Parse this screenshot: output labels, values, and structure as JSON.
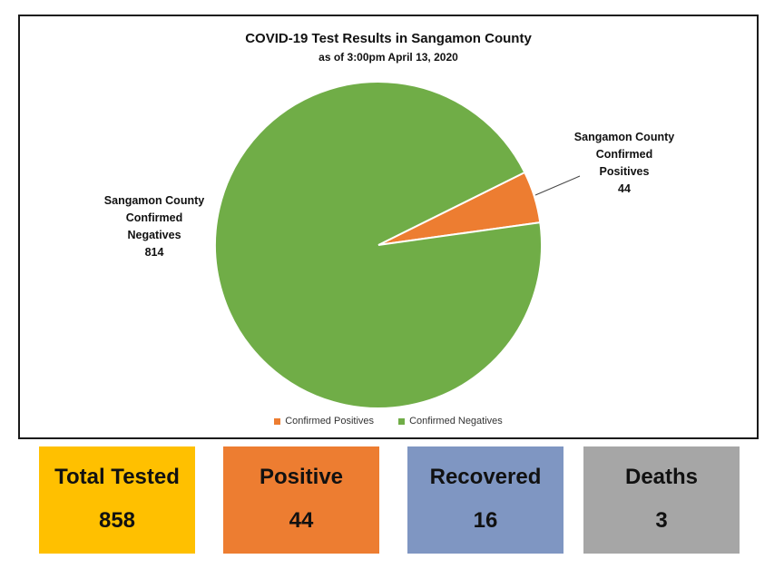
{
  "chart_data": {
    "type": "pie",
    "title": "COVID-19 Test Results in Sangamon County",
    "subtitle": "as of 3:00pm April 13, 2020",
    "slices": [
      {
        "legend": "Confirmed Positives",
        "label_lines": [
          "Sangamon County",
          "Confirmed",
          "Positives",
          "44"
        ],
        "value": 44,
        "color": "#ed7d31"
      },
      {
        "legend": "Confirmed Negatives",
        "label_lines": [
          "Sangamon County",
          "Confirmed",
          "Negatives",
          "814"
        ],
        "value": 814,
        "color": "#70ad47"
      }
    ],
    "legend_position": "bottom"
  },
  "summary": [
    {
      "label": "Total Tested",
      "value": "858",
      "color": "#ffc000"
    },
    {
      "label": "Positive",
      "value": "44",
      "color": "#ed7d31"
    },
    {
      "label": "Recovered",
      "value": "16",
      "color": "#7f96c2"
    },
    {
      "label": "Deaths",
      "value": "3",
      "color": "#a6a6a6"
    }
  ]
}
